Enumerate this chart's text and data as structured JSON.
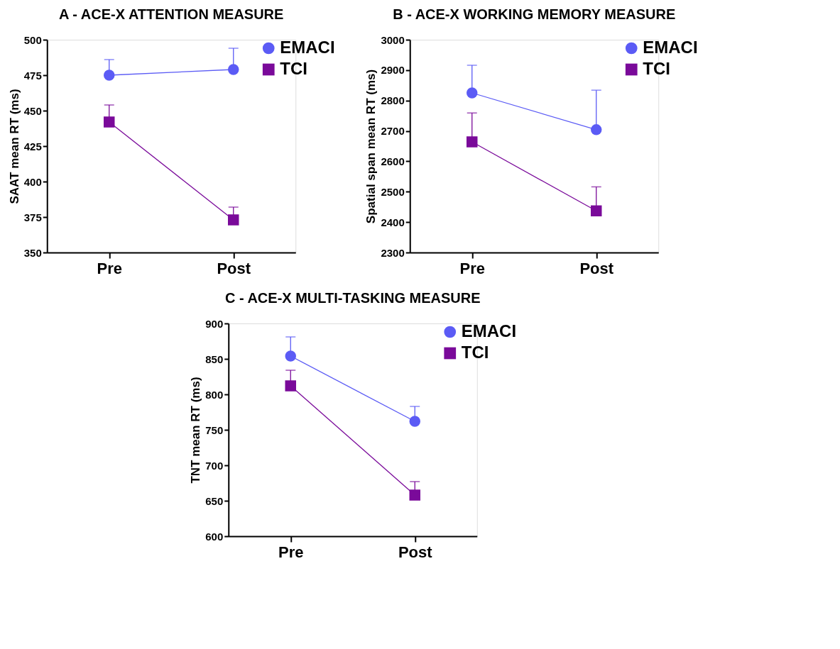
{
  "chart_data": [
    {
      "type": "line",
      "title": "A - ACE-X ATTENTION MEASURE",
      "ylabel": "SAAT mean RT (ms)",
      "categories": [
        "Pre",
        "Post"
      ],
      "ylim": [
        350,
        500
      ],
      "yticks": [
        350,
        375,
        400,
        425,
        450,
        475,
        500
      ],
      "grid": false,
      "legend": "top right",
      "series": [
        {
          "name": "EMACI",
          "color": "#5b5bf5",
          "marker": "circle",
          "values": [
            475,
            479
          ],
          "errors": [
            [
              475,
              486
            ],
            [
              479,
              494
            ]
          ]
        },
        {
          "name": "TCI",
          "color": "#7a0a9a",
          "marker": "square",
          "values": [
            442,
            373
          ],
          "errors": [
            [
              442,
              454
            ],
            [
              373,
              382
            ]
          ]
        }
      ]
    },
    {
      "type": "line",
      "title": "B - ACE-X WORKING MEMORY MEASURE",
      "ylabel": "Spatial span mean RT (ms)",
      "categories": [
        "Pre",
        "Post"
      ],
      "ylim": [
        2300,
        3000
      ],
      "yticks": [
        2300,
        2400,
        2500,
        2600,
        2700,
        2800,
        2900,
        3000
      ],
      "grid": false,
      "legend": "top right",
      "series": [
        {
          "name": "EMACI",
          "color": "#5b5bf5",
          "marker": "circle",
          "values": [
            2825,
            2704
          ],
          "errors": [
            [
              2825,
              2916
            ],
            [
              2704,
              2834
            ]
          ]
        },
        {
          "name": "TCI",
          "color": "#7a0a9a",
          "marker": "square",
          "values": [
            2664,
            2437
          ],
          "errors": [
            [
              2664,
              2759
            ],
            [
              2437,
              2516
            ]
          ]
        }
      ]
    },
    {
      "type": "line",
      "title": "C - ACE-X MULTI-TASKING MEASURE",
      "ylabel": "TNT mean RT (ms)",
      "categories": [
        "Pre",
        "Post"
      ],
      "ylim": [
        600,
        900
      ],
      "yticks": [
        600,
        650,
        700,
        750,
        800,
        850,
        900
      ],
      "grid": false,
      "legend": "top right",
      "series": [
        {
          "name": "EMACI",
          "color": "#5b5bf5",
          "marker": "circle",
          "values": [
            854,
            762
          ],
          "errors": [
            [
              854,
              881
            ],
            [
              762,
              783
            ]
          ]
        },
        {
          "name": "TCI",
          "color": "#7a0a9a",
          "marker": "square",
          "values": [
            812,
            658
          ],
          "errors": [
            [
              812,
              834
            ],
            [
              658,
              677
            ]
          ]
        }
      ]
    }
  ]
}
